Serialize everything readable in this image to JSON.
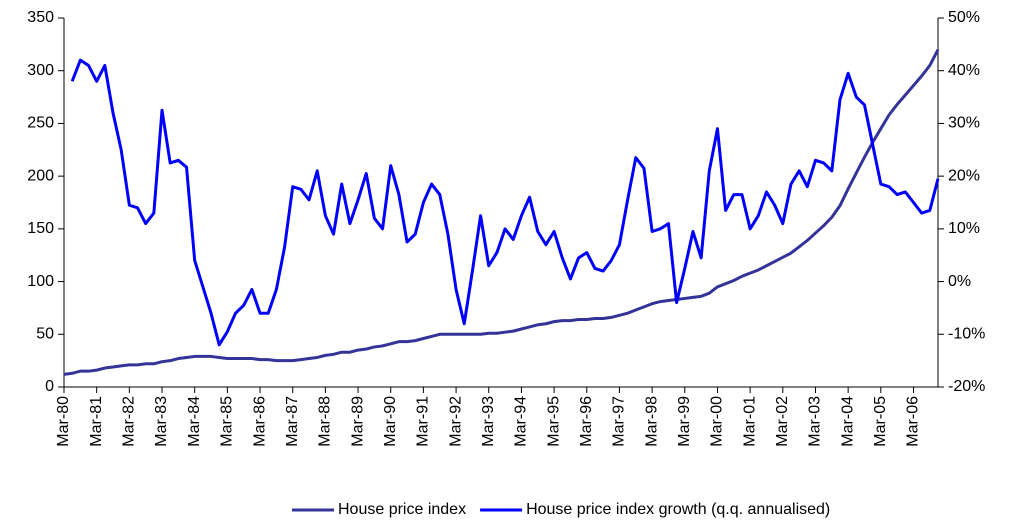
{
  "chart_data": {
    "type": "line",
    "categories": [
      "Mar-80",
      null,
      null,
      null,
      "Mar-81",
      null,
      null,
      null,
      "Mar-82",
      null,
      null,
      null,
      "Mar-83",
      null,
      null,
      null,
      "Mar-84",
      null,
      null,
      null,
      "Mar-85",
      null,
      null,
      null,
      "Mar-86",
      null,
      null,
      null,
      "Mar-87",
      null,
      null,
      null,
      "Mar-88",
      null,
      null,
      null,
      "Mar-89",
      null,
      null,
      null,
      "Mar-90",
      null,
      null,
      null,
      "Mar-91",
      null,
      null,
      null,
      "Mar-92",
      null,
      null,
      null,
      "Mar-93",
      null,
      null,
      null,
      "Mar-94",
      null,
      null,
      null,
      "Mar-95",
      null,
      null,
      null,
      "Mar-96",
      null,
      null,
      null,
      "Mar-97",
      null,
      null,
      null,
      "Mar-98",
      null,
      null,
      null,
      "Mar-99",
      null,
      null,
      null,
      "Mar-00",
      null,
      null,
      null,
      "Mar-01",
      null,
      null,
      null,
      "Mar-02",
      null,
      null,
      null,
      "Mar-03",
      null,
      null,
      null,
      "Mar-04",
      null,
      null,
      null,
      "Mar-05",
      null,
      null,
      null,
      "Mar-06",
      null,
      null,
      null
    ],
    "series": [
      {
        "name": "House price index",
        "color": "#333399",
        "axis": "y",
        "values": [
          12,
          13,
          15,
          15,
          16,
          18,
          19,
          20,
          21,
          21,
          22,
          22,
          24,
          25,
          27,
          28,
          29,
          29,
          29,
          28,
          27,
          27,
          27,
          27,
          26,
          26,
          25,
          25,
          25,
          26,
          27,
          28,
          30,
          31,
          33,
          33,
          35,
          36,
          38,
          39,
          41,
          43,
          43,
          44,
          46,
          48,
          50,
          50,
          50,
          50,
          50,
          50,
          51,
          51,
          52,
          53,
          55,
          57,
          59,
          60,
          62,
          63,
          63,
          64,
          64,
          65,
          65,
          66,
          68,
          70,
          73,
          76,
          79,
          81,
          82,
          83,
          84,
          85,
          86,
          89,
          95,
          98,
          101,
          105,
          108,
          111,
          115,
          119,
          123,
          127,
          133,
          139,
          146,
          153,
          161,
          172,
          188,
          203,
          218,
          232,
          245,
          258,
          268,
          277,
          286,
          295,
          305,
          320
        ]
      },
      {
        "name": "House price index growth (q.q. annualised)",
        "color": "#0000ff",
        "axis": "y2",
        "values": [
          null,
          38,
          42,
          41,
          38,
          41,
          32,
          25,
          14.5,
          14,
          11,
          13,
          32.5,
          22.5,
          23,
          21.7,
          4,
          -1,
          -6,
          -12,
          -9.5,
          -6,
          -4.5,
          -1.5,
          -6,
          -6,
          -1.5,
          6.5,
          18,
          17.5,
          15.5,
          21,
          12.5,
          9,
          18.5,
          11,
          15.5,
          20.5,
          12,
          10,
          22,
          16.5,
          7.5,
          9,
          15,
          18.5,
          16.5,
          9,
          -1.5,
          -8,
          2,
          12.5,
          3,
          5.5,
          10,
          8,
          12.5,
          16,
          9.5,
          7,
          9.5,
          4.5,
          0.5,
          4.5,
          5.5,
          2.5,
          2,
          4,
          7,
          15.5,
          23.5,
          21.5,
          9.5,
          10,
          11,
          -4,
          2.5,
          9.5,
          4.5,
          21,
          29,
          13.5,
          16.5,
          16.5,
          10,
          12.5,
          17,
          14.5,
          11,
          18.5,
          21,
          18,
          23,
          22.5,
          21,
          34.5,
          39.5,
          35,
          33.5,
          26,
          18.5,
          18,
          16.5,
          17,
          15,
          13,
          13.5,
          19.5
        ]
      }
    ],
    "ylim": [
      0,
      350
    ],
    "yticks": [
      0,
      50,
      100,
      150,
      200,
      250,
      300,
      350
    ],
    "y2lim": [
      -20,
      50
    ],
    "y2ticks": [
      {
        "value": -20,
        "label": "-20%"
      },
      {
        "value": -10,
        "label": "-10%"
      },
      {
        "value": 0,
        "label": "0%"
      },
      {
        "value": 10,
        "label": "10%"
      },
      {
        "value": 20,
        "label": "20%"
      },
      {
        "value": 30,
        "label": "30%"
      },
      {
        "value": 40,
        "label": "40%"
      },
      {
        "value": 50,
        "label": "50%"
      }
    ],
    "legend": "bottom"
  }
}
